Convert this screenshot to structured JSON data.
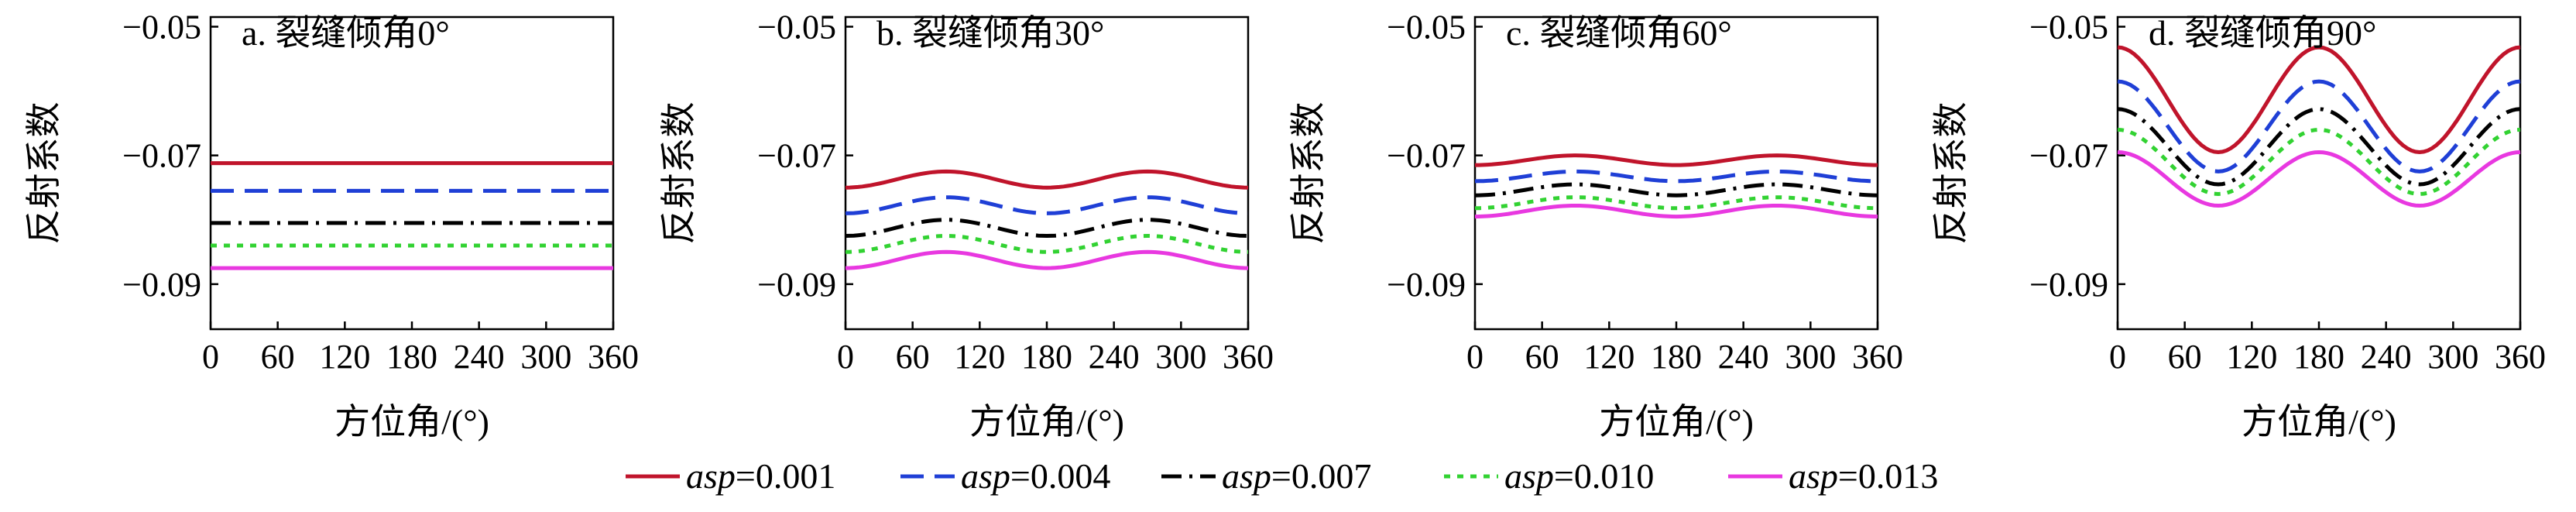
{
  "chart_data": {
    "type": "line",
    "x_ticks": [
      0,
      60,
      120,
      180,
      240,
      300,
      360
    ],
    "y_ticks": [
      -0.05,
      -0.07,
      -0.09
    ],
    "y_tick_labels": [
      "−0.05",
      "−0.07",
      "−0.09"
    ],
    "xlim": [
      0,
      360
    ],
    "ylim": [
      -0.097,
      -0.0485
    ],
    "xlabel": "方位角/(°)",
    "ylabel": "反射系数",
    "grid": false,
    "legend": {
      "placement": "bottom",
      "var": "asp",
      "entries": [
        "=0.001",
        "=0.004",
        "=0.007",
        "=0.010",
        "=0.013"
      ]
    },
    "series_styles": [
      {
        "color": "#c0142b",
        "dash": "none"
      },
      {
        "color": "#1f3fd6",
        "dash": "30,14"
      },
      {
        "color": "#000000",
        "dash": "26,10,4,10"
      },
      {
        "color": "#32d232",
        "dash": "8,9"
      },
      {
        "color": "#e838e0",
        "dash": "none"
      }
    ],
    "panels": [
      {
        "title": "a. 裂缝倾角0°",
        "x": [
          0,
          90,
          180,
          270,
          360
        ],
        "series": [
          {
            "name": "asp=0.001",
            "values": [
              -0.0712,
              -0.0712,
              -0.0712,
              -0.0712,
              -0.0712
            ]
          },
          {
            "name": "asp=0.004",
            "values": [
              -0.0755,
              -0.0755,
              -0.0755,
              -0.0755,
              -0.0755
            ]
          },
          {
            "name": "asp=0.007",
            "values": [
              -0.0805,
              -0.0805,
              -0.0805,
              -0.0805,
              -0.0805
            ]
          },
          {
            "name": "asp=0.010",
            "values": [
              -0.084,
              -0.084,
              -0.084,
              -0.084,
              -0.084
            ]
          },
          {
            "name": "asp=0.013",
            "values": [
              -0.0875,
              -0.0875,
              -0.0875,
              -0.0875,
              -0.0875
            ]
          }
        ]
      },
      {
        "title": "b. 裂缝倾角30°",
        "x": [
          0,
          90,
          180,
          270,
          360
        ],
        "series": [
          {
            "name": "asp=0.001",
            "values": [
              -0.075,
              -0.0725,
              -0.075,
              -0.0725,
              -0.075
            ]
          },
          {
            "name": "asp=0.004",
            "values": [
              -0.079,
              -0.0765,
              -0.079,
              -0.0765,
              -0.079
            ]
          },
          {
            "name": "asp=0.007",
            "values": [
              -0.0825,
              -0.08,
              -0.0825,
              -0.08,
              -0.0825
            ]
          },
          {
            "name": "asp=0.010",
            "values": [
              -0.085,
              -0.0825,
              -0.085,
              -0.0825,
              -0.085
            ]
          },
          {
            "name": "asp=0.013",
            "values": [
              -0.0875,
              -0.085,
              -0.0875,
              -0.085,
              -0.0875
            ]
          }
        ]
      },
      {
        "title": "c. 裂缝倾角60°",
        "x": [
          0,
          90,
          180,
          270,
          360
        ],
        "series": [
          {
            "name": "asp=0.001",
            "values": [
              -0.0715,
              -0.07,
              -0.0715,
              -0.07,
              -0.0715
            ]
          },
          {
            "name": "asp=0.004",
            "values": [
              -0.074,
              -0.0725,
              -0.074,
              -0.0725,
              -0.074
            ]
          },
          {
            "name": "asp=0.007",
            "values": [
              -0.0762,
              -0.0745,
              -0.0762,
              -0.0745,
              -0.0762
            ]
          },
          {
            "name": "asp=0.010",
            "values": [
              -0.0782,
              -0.0765,
              -0.0782,
              -0.0765,
              -0.0782
            ]
          },
          {
            "name": "asp=0.013",
            "values": [
              -0.0795,
              -0.0778,
              -0.0795,
              -0.0778,
              -0.0795
            ]
          }
        ]
      },
      {
        "title": "d. 裂缝倾角90°",
        "x": [
          0,
          90,
          180,
          270,
          360
        ],
        "series": [
          {
            "name": "asp=0.001",
            "values": [
              -0.0532,
              -0.0695,
              -0.0532,
              -0.0695,
              -0.0532
            ]
          },
          {
            "name": "asp=0.004",
            "values": [
              -0.0585,
              -0.0725,
              -0.0585,
              -0.0725,
              -0.0585
            ]
          },
          {
            "name": "asp=0.007",
            "values": [
              -0.0628,
              -0.0745,
              -0.0628,
              -0.0745,
              -0.0628
            ]
          },
          {
            "name": "asp=0.010",
            "values": [
              -0.066,
              -0.076,
              -0.066,
              -0.076,
              -0.066
            ]
          },
          {
            "name": "asp=0.013",
            "values": [
              -0.0695,
              -0.0778,
              -0.0695,
              -0.0778,
              -0.0695
            ]
          }
        ]
      }
    ]
  }
}
